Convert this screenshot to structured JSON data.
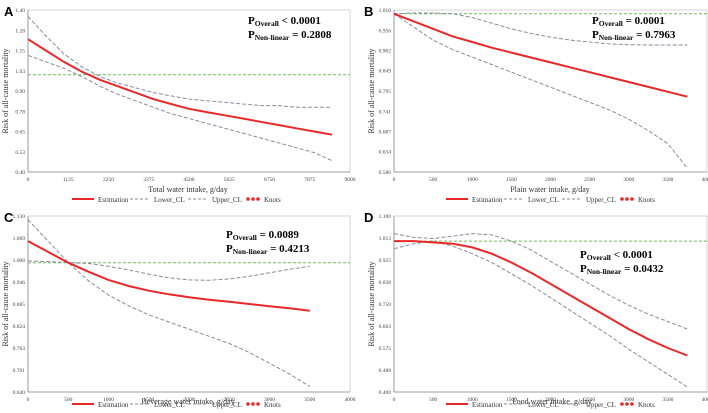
{
  "colors": {
    "estimation": "#e8282a",
    "ci": "#8a8aa0",
    "reference": "#6cbf5a",
    "knots": "#e8282a"
  },
  "legend": {
    "estimation": "Estimation",
    "lower": "Lower_CL",
    "upper": "Upper_CL",
    "knots": "Knots"
  },
  "chart_data": [
    {
      "id": "A",
      "type": "line",
      "letter": "A",
      "xlabel": "Total water intake, g/day",
      "ylabel": "Risk of all-cause mortality",
      "xlim": [
        0,
        9000
      ],
      "ylim": [
        0.4,
        1.4
      ],
      "xticks": [
        "0",
        "1125",
        "2250",
        "3375",
        "4500",
        "5625",
        "6750",
        "7875",
        "9000"
      ],
      "xtick_values": [
        0,
        1125,
        2250,
        3375,
        4500,
        5625,
        6750,
        7875,
        9000
      ],
      "yticks": [
        "0.40",
        "0.53",
        "0.65",
        "0.78",
        "0.90",
        "1.03",
        "1.15",
        "1.28",
        "1.40"
      ],
      "ytick_values": [
        0.4,
        0.525,
        0.65,
        0.775,
        0.9,
        1.025,
        1.15,
        1.275,
        1.4
      ],
      "reference": 1.0,
      "stats": {
        "p_overall_label": "Overall",
        "p_overall": " < 0.0001",
        "p_nonlinear_label": "Non-linear",
        "p_nonlinear": " = 0.2808"
      },
      "x": [
        0,
        500,
        1000,
        1500,
        2000,
        2500,
        3000,
        3500,
        4000,
        4500,
        5000,
        5500,
        6000,
        6500,
        7000,
        7500,
        8000,
        8500
      ],
      "estimation": [
        1.22,
        1.15,
        1.08,
        1.02,
        0.97,
        0.93,
        0.89,
        0.85,
        0.82,
        0.79,
        0.77,
        0.75,
        0.73,
        0.71,
        0.69,
        0.67,
        0.65,
        0.63
      ],
      "lower_cl": [
        1.12,
        1.08,
        1.04,
        0.99,
        0.93,
        0.88,
        0.84,
        0.8,
        0.76,
        0.73,
        0.7,
        0.67,
        0.64,
        0.61,
        0.58,
        0.55,
        0.52,
        0.47
      ],
      "upper_cl": [
        1.36,
        1.24,
        1.13,
        1.05,
        0.99,
        0.95,
        0.92,
        0.89,
        0.87,
        0.85,
        0.84,
        0.83,
        0.82,
        0.81,
        0.81,
        0.8,
        0.8,
        0.8
      ]
    },
    {
      "id": "B",
      "type": "line",
      "letter": "B",
      "xlabel": "Plain water intake, g/day",
      "ylabel": "Risk of all-cause mortality",
      "xlim": [
        0,
        4000
      ],
      "ylim": [
        0.58,
        1.01
      ],
      "xticks": [
        "0",
        "500",
        "1000",
        "1500",
        "2000",
        "2500",
        "3000",
        "3500",
        "4000"
      ],
      "xtick_values": [
        0,
        500,
        1000,
        1500,
        2000,
        2500,
        3000,
        3500,
        4000
      ],
      "yticks": [
        "0.580",
        "0.634",
        "0.687",
        "0.741",
        "0.795",
        "0.849",
        "0.902",
        "0.956",
        "1.010"
      ],
      "ytick_values": [
        0.58,
        0.634,
        0.687,
        0.741,
        0.795,
        0.849,
        0.902,
        0.956,
        1.01
      ],
      "reference": 1.0,
      "stats": {
        "p_overall_label": "Overall",
        "p_overall": " = 0.0001",
        "p_nonlinear_label": "Non-linear",
        "p_nonlinear": " = 0.7963"
      },
      "x": [
        0,
        250,
        500,
        750,
        1000,
        1250,
        1500,
        1750,
        2000,
        2250,
        2500,
        2750,
        3000,
        3250,
        3500,
        3750
      ],
      "estimation": [
        1.0,
        0.98,
        0.96,
        0.94,
        0.925,
        0.91,
        0.897,
        0.884,
        0.871,
        0.858,
        0.845,
        0.832,
        0.819,
        0.806,
        0.793,
        0.78
      ],
      "lower_cl": [
        1.0,
        0.965,
        0.93,
        0.905,
        0.885,
        0.865,
        0.845,
        0.825,
        0.805,
        0.785,
        0.765,
        0.745,
        0.72,
        0.69,
        0.655,
        0.59
      ],
      "upper_cl": [
        1.0,
        1.002,
        1.002,
        1.0,
        0.99,
        0.975,
        0.96,
        0.948,
        0.938,
        0.93,
        0.925,
        0.92,
        0.918,
        0.917,
        0.917,
        0.917
      ]
    },
    {
      "id": "C",
      "type": "line",
      "letter": "C",
      "xlabel": "Beverage water intake, g/day",
      "ylabel": "Risk of all-cause mortality",
      "xlim": [
        0,
        4000
      ],
      "ylim": [
        0.64,
        1.13
      ],
      "xticks": [
        "0",
        "500",
        "1000",
        "1500",
        "2000",
        "2500",
        "3000",
        "3500",
        "4000"
      ],
      "xtick_values": [
        0,
        500,
        1000,
        1500,
        2000,
        2500,
        3000,
        3500,
        4000
      ],
      "yticks": [
        "0.640",
        "0.701",
        "0.763",
        "0.824",
        "0.885",
        "0.946",
        "1.008",
        "1.069",
        "1.130"
      ],
      "ytick_values": [
        0.64,
        0.701,
        0.763,
        0.824,
        0.885,
        0.946,
        1.008,
        1.069,
        1.13
      ],
      "reference": 1.0,
      "stats": {
        "p_overall_label": "Overall",
        "p_overall": " = 0.0089",
        "p_nonlinear_label": "Non-linear",
        "p_nonlinear": " = 0.4213"
      },
      "x": [
        0,
        250,
        500,
        750,
        1000,
        1250,
        1500,
        1750,
        2000,
        2250,
        2500,
        2750,
        3000,
        3250,
        3500
      ],
      "estimation": [
        1.06,
        1.03,
        1.0,
        0.975,
        0.952,
        0.935,
        0.922,
        0.912,
        0.904,
        0.897,
        0.891,
        0.885,
        0.879,
        0.873,
        0.866
      ],
      "lower_cl": [
        1.12,
        1.06,
        1.0,
        0.95,
        0.91,
        0.88,
        0.855,
        0.835,
        0.815,
        0.795,
        0.775,
        0.75,
        0.72,
        0.69,
        0.655
      ],
      "upper_cl": [
        1.005,
        1.003,
        1.0,
        0.998,
        0.99,
        0.98,
        0.968,
        0.958,
        0.952,
        0.951,
        0.955,
        0.962,
        0.972,
        0.982,
        0.99
      ]
    },
    {
      "id": "D",
      "type": "line",
      "letter": "D",
      "xlabel": "Food water intake, g/day",
      "ylabel": "Risk of all-cause mortality",
      "xlim": [
        0,
        4000
      ],
      "ylim": [
        0.4,
        1.1
      ],
      "xticks": [
        "0",
        "500",
        "1000",
        "1500",
        "2000",
        "2500",
        "3000",
        "3500",
        "4000"
      ],
      "xtick_values": [
        0,
        500,
        1000,
        1500,
        2000,
        2500,
        3000,
        3500,
        4000
      ],
      "yticks": [
        "0.400",
        "0.488",
        "0.575",
        "0.663",
        "0.750",
        "0.838",
        "0.925",
        "1.013",
        "1.100"
      ],
      "ytick_values": [
        0.4,
        0.4875,
        0.575,
        0.6625,
        0.75,
        0.8375,
        0.925,
        1.0125,
        1.1
      ],
      "reference": 1.0,
      "stats": {
        "p_overall_label": "Overall",
        "p_overall": " < 0.0001",
        "p_nonlinear_label": "Non-linear",
        "p_nonlinear": " = 0.0432"
      },
      "x": [
        0,
        250,
        500,
        750,
        1000,
        1250,
        1500,
        1750,
        2000,
        2250,
        2500,
        2750,
        3000,
        3250,
        3500,
        3750
      ],
      "estimation": [
        1.0,
        1.0,
        0.995,
        0.99,
        0.975,
        0.95,
        0.915,
        0.875,
        0.83,
        0.785,
        0.74,
        0.695,
        0.65,
        0.61,
        0.575,
        0.545
      ],
      "lower_cl": [
        0.97,
        0.99,
        1.0,
        0.98,
        0.95,
        0.915,
        0.87,
        0.825,
        0.775,
        0.725,
        0.675,
        0.625,
        0.57,
        0.52,
        0.47,
        0.42
      ],
      "upper_cl": [
        1.03,
        1.015,
        1.01,
        1.02,
        1.03,
        1.025,
        1.0,
        0.965,
        0.92,
        0.875,
        0.83,
        0.785,
        0.745,
        0.71,
        0.68,
        0.65
      ]
    }
  ]
}
